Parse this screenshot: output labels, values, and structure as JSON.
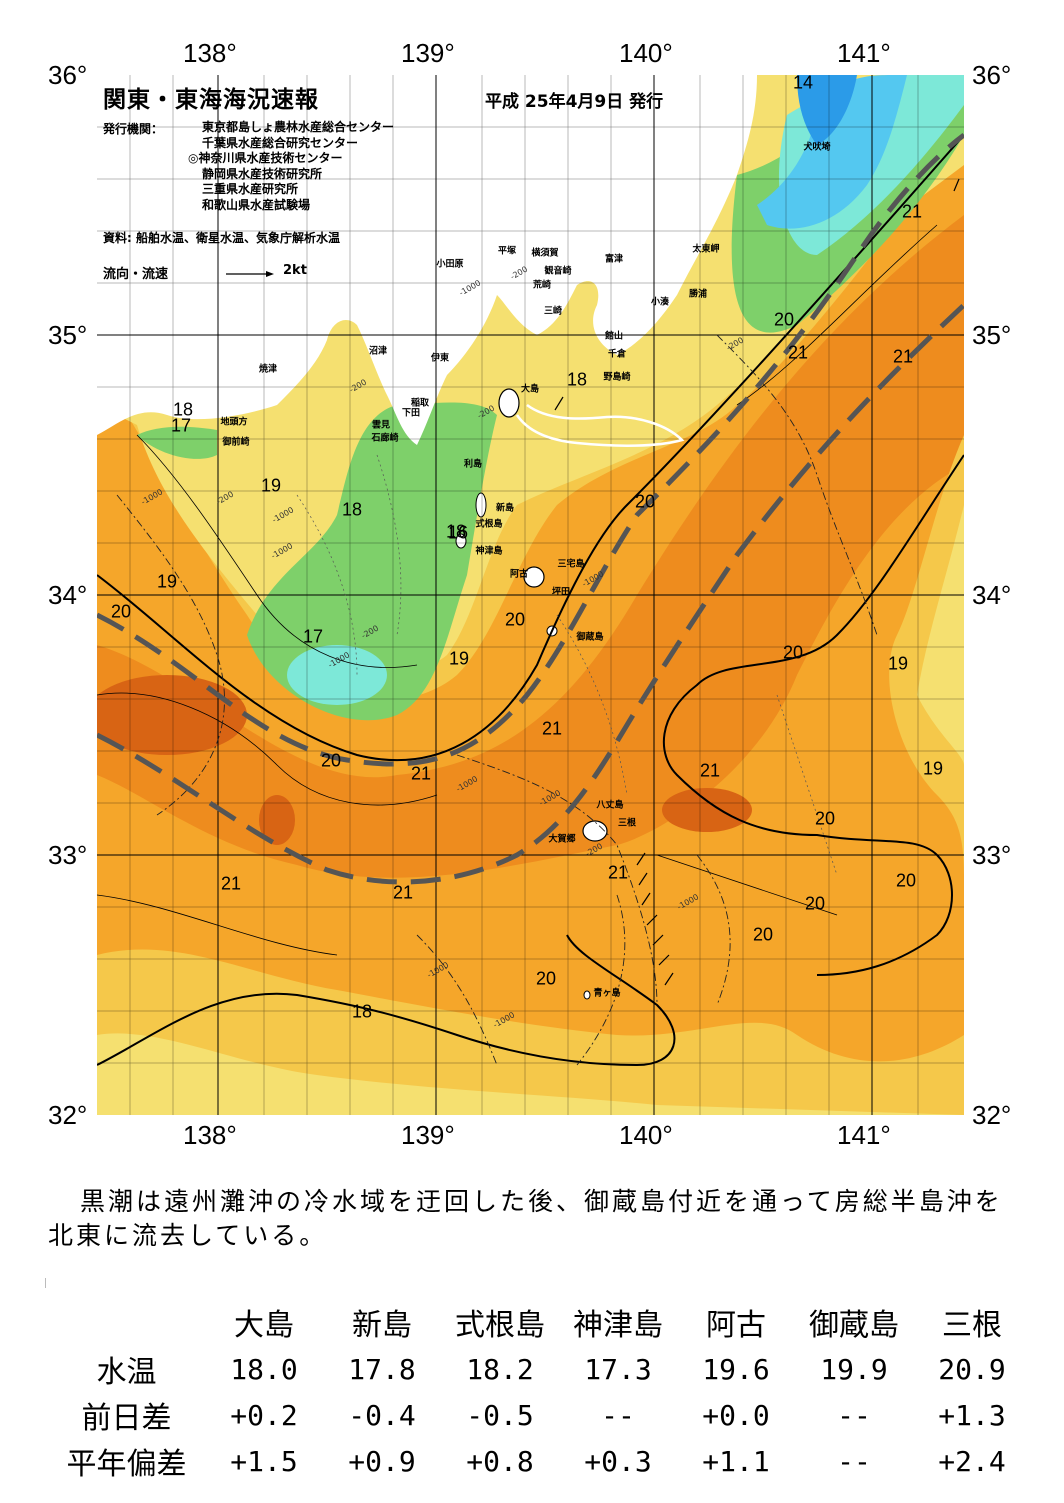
{
  "header": {
    "title": "関東・東海海況速報",
    "issue_date": "平成 25年4月9日 発行",
    "publisher_label": "発行機関：",
    "publishers": [
      "東京都島しょ農林水産総合センター",
      "千葉県水産総合研究センター",
      "◎神奈川県水産技術センター",
      "静岡県水産技術研究所",
      "三重県水産研究所",
      "和歌山県水産試験場"
    ],
    "source": "資料: 船舶水温、衛星水温、気象庁解析水温",
    "flow_label": "流向・流速",
    "flow_scale": "2kt"
  },
  "axes": {
    "longitudes": [
      "138°",
      "139°",
      "140°",
      "141°"
    ],
    "latitudes": [
      "36°",
      "35°",
      "34°",
      "33°",
      "32°"
    ]
  },
  "map": {
    "isotherm_labels": [
      "14",
      "21",
      "20",
      "21",
      "21",
      "18",
      "18",
      "17",
      "19",
      "20",
      "18",
      "18",
      "19",
      "20",
      "17",
      "20",
      "19",
      "19",
      "21",
      "20",
      "21",
      "21",
      "20",
      "19",
      "20",
      "21",
      "21",
      "20",
      "21",
      "20",
      "20",
      "20",
      "18",
      "16"
    ],
    "place_names": [
      "犬吠埼",
      "太東岬",
      "勝浦",
      "小湊",
      "富津",
      "観音崎",
      "横須賀",
      "平塚",
      "小田原",
      "荒崎",
      "三崎",
      "館山",
      "千倉",
      "野島崎",
      "沼津",
      "伊東",
      "焼津",
      "地頭方",
      "御前崎",
      "稲取",
      "下田",
      "雲見",
      "石廊崎",
      "大島",
      "利島",
      "新島",
      "式根島",
      "神津島",
      "三宅島",
      "阿古",
      "坪田",
      "御蔵島",
      "八丈島",
      "三根",
      "大賀郷",
      "青ヶ島"
    ],
    "depth_labels": [
      "-1000",
      "-200",
      "-200",
      "-1000",
      "-200",
      "-200",
      "-1000",
      "-200",
      "-1000",
      "-1000",
      "-200",
      "-1000",
      "-1000",
      "-1000",
      "-1000",
      "-1000",
      "-200",
      "-1000"
    ],
    "colors": {
      "kuroshio_axis": "#555555",
      "temp_14": "#2b9be8",
      "temp_16": "#54c8f0",
      "temp_17": "#7de8d8",
      "temp_18": "#7ed06a",
      "temp_19": "#f5e070",
      "temp_20": "#f5a62a",
      "temp_21": "#ee8c1e",
      "temp_22": "#d86414"
    }
  },
  "summary": "黒潮は遠州灘沖の冷水域を迂回した後、御蔵島付近を通って房総半島沖を北東に流去している。",
  "observations": {
    "columns": [
      "大島",
      "新島",
      "式根島",
      "神津島",
      "阿古",
      "御蔵島",
      "三根"
    ],
    "rows": [
      {
        "label": "水温",
        "values": [
          "18.0",
          "17.8",
          "18.2",
          "17.3",
          "19.6",
          "19.9",
          "20.9"
        ]
      },
      {
        "label": "前日差",
        "values": [
          "+0.2",
          "-0.4",
          "-0.5",
          "--",
          "+0.0",
          "--",
          "+1.3"
        ]
      },
      {
        "label": "平年偏差",
        "values": [
          "+1.5",
          "+0.9",
          "+0.8",
          "+0.3",
          "+1.1",
          "--",
          "+2.4"
        ]
      }
    ]
  }
}
